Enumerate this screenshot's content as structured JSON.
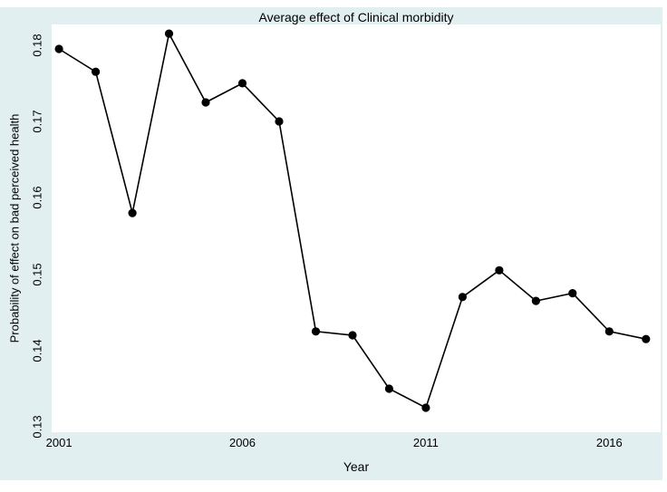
{
  "page": {
    "background_color": "#ffffff",
    "graph_region_color": "#e2eff1",
    "plot_region_color": "#ffffff"
  },
  "chart_data": {
    "type": "line",
    "title": "Average effect of Clinical morbidity",
    "xlabel": "Year",
    "ylabel": "Probability of effect on bad perceived health",
    "x": [
      2001,
      2002,
      2003,
      2004,
      2005,
      2006,
      2007,
      2008,
      2009,
      2010,
      2011,
      2012,
      2013,
      2014,
      2015,
      2016,
      2017
    ],
    "values": [
      0.1795,
      0.1765,
      0.158,
      0.1815,
      0.1725,
      0.175,
      0.17,
      0.1425,
      0.142,
      0.135,
      0.1325,
      0.147,
      0.1505,
      0.1465,
      0.1475,
      0.1425,
      0.1415
    ],
    "xticks": [
      2001,
      2006,
      2011,
      2016
    ],
    "yticks": [
      0.13,
      0.14,
      0.15,
      0.16,
      0.17,
      0.18
    ],
    "xlim": [
      2000.8,
      2017.4
    ],
    "ylim": [
      0.1293,
      0.1827
    ],
    "grid": false,
    "legend": "none",
    "line_color": "#000000",
    "marker": "filled-circle",
    "marker_color": "#000000"
  }
}
